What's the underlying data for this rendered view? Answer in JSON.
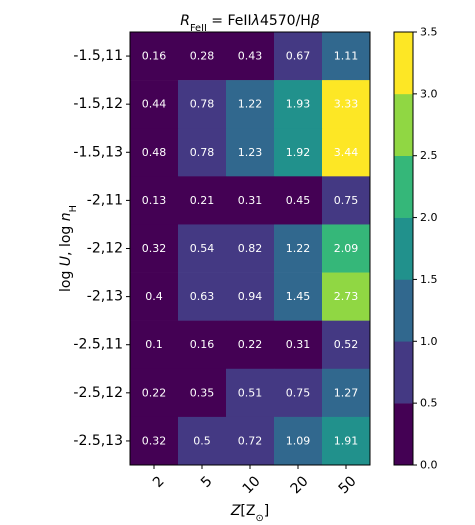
{
  "chart_data": {
    "type": "heatmap",
    "title_parts": [
      {
        "text": "R",
        "style": "italic"
      },
      {
        "text": "FeII",
        "style": "sub"
      },
      {
        "text": " = FeII",
        "style": "normal"
      },
      {
        "text": "λ",
        "style": "italic"
      },
      {
        "text": "4570/H",
        "style": "normal"
      },
      {
        "text": "β",
        "style": "italic"
      }
    ],
    "xlabel_parts": [
      {
        "text": "Z",
        "style": "italic"
      },
      {
        "text": "[Z",
        "style": "normal"
      },
      {
        "text": "⊙",
        "style": "sub"
      },
      {
        "text": "]",
        "style": "normal"
      }
    ],
    "ylabel_parts": [
      {
        "text": "log ",
        "style": "normal"
      },
      {
        "text": "U",
        "style": "italic"
      },
      {
        "text": ", log ",
        "style": "normal"
      },
      {
        "text": "n",
        "style": "italic"
      },
      {
        "text": "H",
        "style": "sub"
      }
    ],
    "x_categories": [
      "2",
      "5",
      "10",
      "20",
      "50"
    ],
    "y_categories": [
      "-1.5,11",
      "-1.5,12",
      "-1.5,13",
      "-2,11",
      "-2,12",
      "-2,13",
      "-2.5,11",
      "-2.5,12",
      "-2.5,13"
    ],
    "values": [
      [
        0.16,
        0.28,
        0.43,
        0.67,
        1.11
      ],
      [
        0.44,
        0.78,
        1.22,
        1.93,
        3.33
      ],
      [
        0.48,
        0.78,
        1.23,
        1.92,
        3.44
      ],
      [
        0.13,
        0.21,
        0.31,
        0.45,
        0.75
      ],
      [
        0.32,
        0.54,
        0.82,
        1.22,
        2.09
      ],
      [
        0.4,
        0.63,
        0.94,
        1.45,
        2.73
      ],
      [
        0.1,
        0.16,
        0.22,
        0.31,
        0.52
      ],
      [
        0.22,
        0.35,
        0.51,
        0.75,
        1.27
      ],
      [
        0.32,
        0.5,
        0.72,
        1.09,
        1.91
      ]
    ],
    "cell_labels": [
      [
        "0.16",
        "0.28",
        "0.43",
        "0.67",
        "1.11"
      ],
      [
        "0.44",
        "0.78",
        "1.22",
        "1.93",
        "3.33"
      ],
      [
        "0.48",
        "0.78",
        "1.23",
        "1.92",
        "3.44"
      ],
      [
        "0.13",
        "0.21",
        "0.31",
        "0.45",
        "0.75"
      ],
      [
        "0.32",
        "0.54",
        "0.82",
        "1.22",
        "2.09"
      ],
      [
        "0.4",
        "0.63",
        "0.94",
        "1.45",
        "2.73"
      ],
      [
        "0.1",
        "0.16",
        "0.22",
        "0.31",
        "0.52"
      ],
      [
        "0.22",
        "0.35",
        "0.51",
        "0.75",
        "1.27"
      ],
      [
        "0.32",
        "0.5",
        "0.72",
        "1.09",
        "1.91"
      ]
    ],
    "colorbar": {
      "boundaries": [
        0.0,
        0.5,
        1.0,
        1.5,
        2.0,
        2.5,
        3.0,
        3.5
      ],
      "tick_labels": [
        "0.0",
        "0.5",
        "1.0",
        "1.5",
        "2.0",
        "2.5",
        "3.0",
        "3.5"
      ],
      "colors": [
        "#440154",
        "#443983",
        "#31688e",
        "#21918c",
        "#35b779",
        "#90d743",
        "#fde725"
      ],
      "range": [
        0.0,
        3.5
      ]
    },
    "cell_text_color": "#ffffff",
    "grid": false,
    "legend": "colorbar-right"
  }
}
